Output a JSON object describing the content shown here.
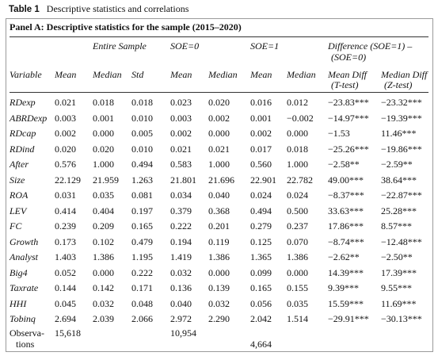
{
  "caption": {
    "label": "Table 1",
    "title": "Descriptive statistics and correlations"
  },
  "panel_title": "Panel A: Descriptive statistics for the sample (2015–2020)",
  "group_headers": {
    "entire": "Entire Sample",
    "soe0": "SOE=0",
    "soe1": "SOE=1",
    "diff_line1": "Difference (SOE=1) –",
    "diff_line2": "(SOE=0)"
  },
  "column_headers": {
    "variable": "Variable",
    "mean1": "Mean",
    "median1": "Median",
    "std": "Std",
    "mean2": "Mean",
    "median2": "Median",
    "mean3": "Mean",
    "median3": "Median",
    "meandiff_line1": "Mean Diff",
    "meandiff_line2": "(T-test)",
    "mediandiff_line1": "Median Diff",
    "mediandiff_line2": "(Z-test)"
  },
  "rows": [
    [
      "RDexp",
      "0.021",
      "0.018",
      "0.018",
      "0.023",
      "0.020",
      "0.016",
      "0.012",
      "−23.83***",
      "−23.32***"
    ],
    [
      "ABRDexp",
      "0.003",
      "0.001",
      "0.010",
      "0.003",
      "0.002",
      "0.001",
      "−0.002",
      "−14.97***",
      "−19.39***"
    ],
    [
      "RDcap",
      "0.002",
      "0.000",
      "0.005",
      "0.002",
      "0.000",
      "0.002",
      "0.000",
      "−1.53",
      "11.46***"
    ],
    [
      "RDind",
      "0.020",
      "0.020",
      "0.010",
      "0.021",
      "0.021",
      "0.017",
      "0.018",
      "−25.26***",
      "−19.86***"
    ],
    [
      "After",
      "0.576",
      "1.000",
      "0.494",
      "0.583",
      "1.000",
      "0.560",
      "1.000",
      "−2.58**",
      "−2.59**"
    ],
    [
      "Size",
      "22.129",
      "21.959",
      "1.263",
      "21.801",
      "21.696",
      "22.901",
      "22.782",
      "49.00***",
      "38.64***"
    ],
    [
      "ROA",
      "0.031",
      "0.035",
      "0.081",
      "0.034",
      "0.040",
      "0.024",
      "0.024",
      "−8.37***",
      "−22.87***"
    ],
    [
      "LEV",
      "0.414",
      "0.404",
      "0.197",
      "0.379",
      "0.368",
      "0.494",
      "0.500",
      "33.63***",
      "25.28***"
    ],
    [
      "FC",
      "0.239",
      "0.209",
      "0.165",
      "0.222",
      "0.201",
      "0.279",
      "0.237",
      "17.86***",
      "8.57***"
    ],
    [
      "Growth",
      "0.173",
      "0.102",
      "0.479",
      "0.194",
      "0.119",
      "0.125",
      "0.070",
      "−8.74***",
      "−12.48***"
    ],
    [
      "Analyst",
      "1.403",
      "1.386",
      "1.195",
      "1.419",
      "1.386",
      "1.365",
      "1.386",
      "−2.62**",
      "−2.50**"
    ],
    [
      "Big4",
      "0.052",
      "0.000",
      "0.222",
      "0.032",
      "0.000",
      "0.099",
      "0.000",
      "14.39***",
      "17.39***"
    ],
    [
      "Taxrate",
      "0.144",
      "0.142",
      "0.171",
      "0.136",
      "0.139",
      "0.165",
      "0.155",
      "9.39***",
      "9.55***"
    ],
    [
      "HHI",
      "0.045",
      "0.032",
      "0.048",
      "0.040",
      "0.032",
      "0.056",
      "0.035",
      "15.59***",
      "11.69***"
    ],
    [
      "Tobinq",
      "2.694",
      "2.039",
      "2.066",
      "2.972",
      "2.290",
      "2.042",
      "1.514",
      "−29.91***",
      "−30.13***"
    ]
  ],
  "observations": {
    "label_line1": "Observa-",
    "label_line2": "tions",
    "entire": "15,618",
    "soe0": "10,954",
    "soe1": "4,664"
  }
}
